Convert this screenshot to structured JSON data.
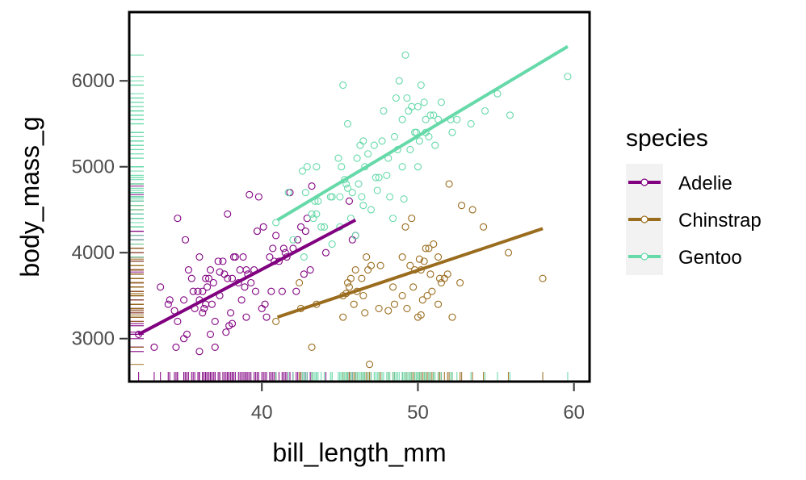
{
  "colors": {
    "Adelie": "#800080",
    "Chinstrap": "#9a6c1e",
    "Gentoo": "#66d9a9",
    "axis": "#333333",
    "panel_border": "#000000",
    "legend_key_bg": "#f2f2f2"
  },
  "chart_data": {
    "type": "scatter",
    "xlabel": "bill_length_mm",
    "ylabel": "body_mass_g",
    "xlim": [
      31.5,
      61
    ],
    "ylim": [
      2500,
      6800
    ],
    "x_ticks": [
      40,
      50,
      60
    ],
    "y_ticks": [
      3000,
      4000,
      5000,
      6000
    ],
    "grid": false,
    "legend": {
      "title": "species",
      "position": "right",
      "entries": [
        "Adelie",
        "Chinstrap",
        "Gentoo"
      ]
    },
    "rug": {
      "x_axis": "bottom",
      "y_axis": "left"
    },
    "series": [
      {
        "name": "Adelie",
        "fit_line": {
          "x": [
            32.1,
            46.0
          ],
          "y": [
            3050,
            4380
          ]
        },
        "points": [
          [
            32.1,
            3050
          ],
          [
            33.1,
            2900
          ],
          [
            33.5,
            3600
          ],
          [
            34.0,
            3400
          ],
          [
            34.1,
            3450
          ],
          [
            34.4,
            3325
          ],
          [
            34.5,
            2900
          ],
          [
            34.6,
            4400
          ],
          [
            34.6,
            3200
          ],
          [
            35.0,
            3450
          ],
          [
            35.1,
            4150
          ],
          [
            35.2,
            3050
          ],
          [
            35.3,
            3800
          ],
          [
            35.5,
            3700
          ],
          [
            35.6,
            3550
          ],
          [
            35.7,
            3350
          ],
          [
            35.9,
            3550
          ],
          [
            36.0,
            3450
          ],
          [
            36.0,
            3950
          ],
          [
            36.2,
            3300
          ],
          [
            36.2,
            3550
          ],
          [
            36.3,
            3350
          ],
          [
            36.4,
            3700
          ],
          [
            36.4,
            3400
          ],
          [
            36.5,
            3600
          ],
          [
            36.6,
            3700
          ],
          [
            36.7,
            3800
          ],
          [
            36.7,
            3050
          ],
          [
            36.8,
            3400
          ],
          [
            36.9,
            3650
          ],
          [
            37.0,
            3200
          ],
          [
            37.2,
            3900
          ],
          [
            37.3,
            3775
          ],
          [
            37.3,
            3500
          ],
          [
            37.5,
            3900
          ],
          [
            37.6,
            3750
          ],
          [
            37.7,
            3075
          ],
          [
            37.8,
            3700
          ],
          [
            37.8,
            4450
          ],
          [
            37.9,
            3150
          ],
          [
            38.1,
            3175
          ],
          [
            38.1,
            3700
          ],
          [
            38.2,
            3950
          ],
          [
            38.3,
            3950
          ],
          [
            38.5,
            3650
          ],
          [
            38.6,
            3800
          ],
          [
            38.7,
            3450
          ],
          [
            38.8,
            3950
          ],
          [
            38.9,
            3600
          ],
          [
            39.0,
            3800
          ],
          [
            39.1,
            3750
          ],
          [
            39.2,
            4675
          ],
          [
            39.3,
            3650
          ],
          [
            39.5,
            3800
          ],
          [
            39.6,
            3550
          ],
          [
            39.7,
            4250
          ],
          [
            39.8,
            4650
          ],
          [
            40.1,
            4300
          ],
          [
            40.2,
            3400
          ],
          [
            40.3,
            3250
          ],
          [
            40.5,
            3950
          ],
          [
            40.6,
            3550
          ],
          [
            40.7,
            4050
          ],
          [
            40.8,
            3900
          ],
          [
            40.9,
            4200
          ],
          [
            41.1,
            3900
          ],
          [
            41.3,
            3550
          ],
          [
            41.4,
            4050
          ],
          [
            41.5,
            4000
          ],
          [
            41.6,
            3950
          ],
          [
            41.8,
            4700
          ],
          [
            42.0,
            4050
          ],
          [
            42.2,
            3550
          ],
          [
            42.3,
            4150
          ],
          [
            42.5,
            4300
          ],
          [
            42.7,
            3750
          ],
          [
            42.8,
            4250
          ],
          [
            42.9,
            4400
          ],
          [
            43.1,
            3800
          ],
          [
            43.2,
            4775
          ],
          [
            44.1,
            4000
          ],
          [
            45.6,
            4600
          ],
          [
            45.8,
            4150
          ],
          [
            46.0,
            4200
          ],
          [
            35.0,
            3000
          ],
          [
            36.0,
            2850
          ],
          [
            37.0,
            2900
          ],
          [
            38.0,
            3300
          ],
          [
            39.0,
            3250
          ],
          [
            40.0,
            3350
          ]
        ]
      },
      {
        "name": "Chinstrap",
        "fit_line": {
          "x": [
            41.0,
            58.0
          ],
          "y": [
            3250,
            4280
          ]
        },
        "points": [
          [
            40.9,
            3200
          ],
          [
            42.4,
            3650
          ],
          [
            42.5,
            3350
          ],
          [
            43.2,
            2900
          ],
          [
            43.5,
            3400
          ],
          [
            45.2,
            3250
          ],
          [
            45.2,
            3500
          ],
          [
            45.4,
            3525
          ],
          [
            45.5,
            3650
          ],
          [
            45.6,
            3600
          ],
          [
            45.7,
            3700
          ],
          [
            45.9,
            3400
          ],
          [
            46.0,
            3800
          ],
          [
            46.1,
            3550
          ],
          [
            46.4,
            3700
          ],
          [
            46.5,
            3500
          ],
          [
            46.6,
            3300
          ],
          [
            46.7,
            3950
          ],
          [
            46.8,
            3800
          ],
          [
            46.9,
            2700
          ],
          [
            47.0,
            3850
          ],
          [
            47.5,
            3350
          ],
          [
            47.6,
            3850
          ],
          [
            48.1,
            3325
          ],
          [
            48.5,
            3400
          ],
          [
            49.0,
            3950
          ],
          [
            49.2,
            4300
          ],
          [
            49.3,
            3350
          ],
          [
            49.5,
            3850
          ],
          [
            49.6,
            4400
          ],
          [
            49.7,
            3600
          ],
          [
            49.8,
            3800
          ],
          [
            50.0,
            3250
          ],
          [
            50.1,
            3925
          ],
          [
            50.2,
            3275
          ],
          [
            50.3,
            3450
          ],
          [
            50.5,
            4050
          ],
          [
            50.6,
            3500
          ],
          [
            50.7,
            4050
          ],
          [
            50.8,
            3750
          ],
          [
            50.9,
            3550
          ],
          [
            51.0,
            4100
          ],
          [
            51.3,
            3950
          ],
          [
            51.4,
            3700
          ],
          [
            51.5,
            3650
          ],
          [
            51.7,
            3700
          ],
          [
            51.9,
            3750
          ],
          [
            52.0,
            4800
          ],
          [
            52.2,
            3250
          ],
          [
            52.7,
            3650
          ],
          [
            52.8,
            4550
          ],
          [
            53.5,
            4500
          ],
          [
            54.2,
            4300
          ],
          [
            55.8,
            4000
          ],
          [
            58.0,
            3700
          ],
          [
            49.0,
            3500
          ],
          [
            50.2,
            3800
          ],
          [
            51.3,
            3400
          ],
          [
            48.4,
            3600
          ],
          [
            50.4,
            3900
          ]
        ]
      },
      {
        "name": "Gentoo",
        "fit_line": {
          "x": [
            41.0,
            59.6
          ],
          "y": [
            4380,
            6400
          ]
        },
        "points": [
          [
            40.9,
            4350
          ],
          [
            41.7,
            4700
          ],
          [
            42.0,
            4150
          ],
          [
            42.6,
            4950
          ],
          [
            42.7,
            3950
          ],
          [
            42.8,
            4700
          ],
          [
            42.9,
            5000
          ],
          [
            43.2,
            4450
          ],
          [
            43.3,
            4400
          ],
          [
            43.4,
            4600
          ],
          [
            43.5,
            4450
          ],
          [
            43.6,
            4600
          ],
          [
            43.8,
            4300
          ],
          [
            44.0,
            4300
          ],
          [
            44.4,
            4650
          ],
          [
            44.5,
            4650
          ],
          [
            44.9,
            5100
          ],
          [
            45.0,
            4650
          ],
          [
            45.1,
            5000
          ],
          [
            45.2,
            5950
          ],
          [
            45.3,
            4850
          ],
          [
            45.4,
            4800
          ],
          [
            45.5,
            4750
          ],
          [
            45.7,
            4400
          ],
          [
            45.8,
            4700
          ],
          [
            46.1,
            5100
          ],
          [
            46.2,
            4800
          ],
          [
            46.3,
            5250
          ],
          [
            46.4,
            4650
          ],
          [
            46.5,
            4550
          ],
          [
            46.6,
            5000
          ],
          [
            46.8,
            5150
          ],
          [
            47.2,
            5250
          ],
          [
            47.3,
            4875
          ],
          [
            47.4,
            4725
          ],
          [
            47.5,
            4875
          ],
          [
            47.7,
            5300
          ],
          [
            47.8,
            5650
          ],
          [
            48.1,
            5100
          ],
          [
            48.2,
            4650
          ],
          [
            48.4,
            4400
          ],
          [
            48.5,
            5350
          ],
          [
            48.6,
            5800
          ],
          [
            48.7,
            5200
          ],
          [
            48.8,
            6000
          ],
          [
            49.0,
            5550
          ],
          [
            49.1,
            4625
          ],
          [
            49.2,
            6300
          ],
          [
            49.3,
            5800
          ],
          [
            49.4,
            5650
          ],
          [
            49.5,
            5200
          ],
          [
            49.6,
            5700
          ],
          [
            49.8,
            5400
          ],
          [
            49.9,
            5400
          ],
          [
            50.0,
            5700
          ],
          [
            50.1,
            5300
          ],
          [
            50.2,
            5950
          ],
          [
            50.4,
            5750
          ],
          [
            50.5,
            5550
          ],
          [
            50.7,
            5350
          ],
          [
            50.8,
            5600
          ],
          [
            51.1,
            5250
          ],
          [
            51.3,
            5550
          ],
          [
            51.5,
            5750
          ],
          [
            52.1,
            5550
          ],
          [
            52.2,
            5400
          ],
          [
            52.5,
            5550
          ],
          [
            53.4,
            5500
          ],
          [
            54.3,
            5650
          ],
          [
            55.1,
            5850
          ],
          [
            55.9,
            5600
          ],
          [
            59.6,
            6050
          ],
          [
            46.0,
            4200
          ],
          [
            44.5,
            4100
          ],
          [
            47.0,
            4500
          ],
          [
            45.0,
            4300
          ],
          [
            48.0,
            4900
          ],
          [
            49.0,
            5000
          ],
          [
            50.0,
            5000
          ],
          [
            46.5,
            5300
          ],
          [
            45.5,
            5500
          ],
          [
            43.5,
            5000
          ],
          [
            51.0,
            5600
          ],
          [
            50.5,
            5400
          ]
        ]
      }
    ]
  }
}
